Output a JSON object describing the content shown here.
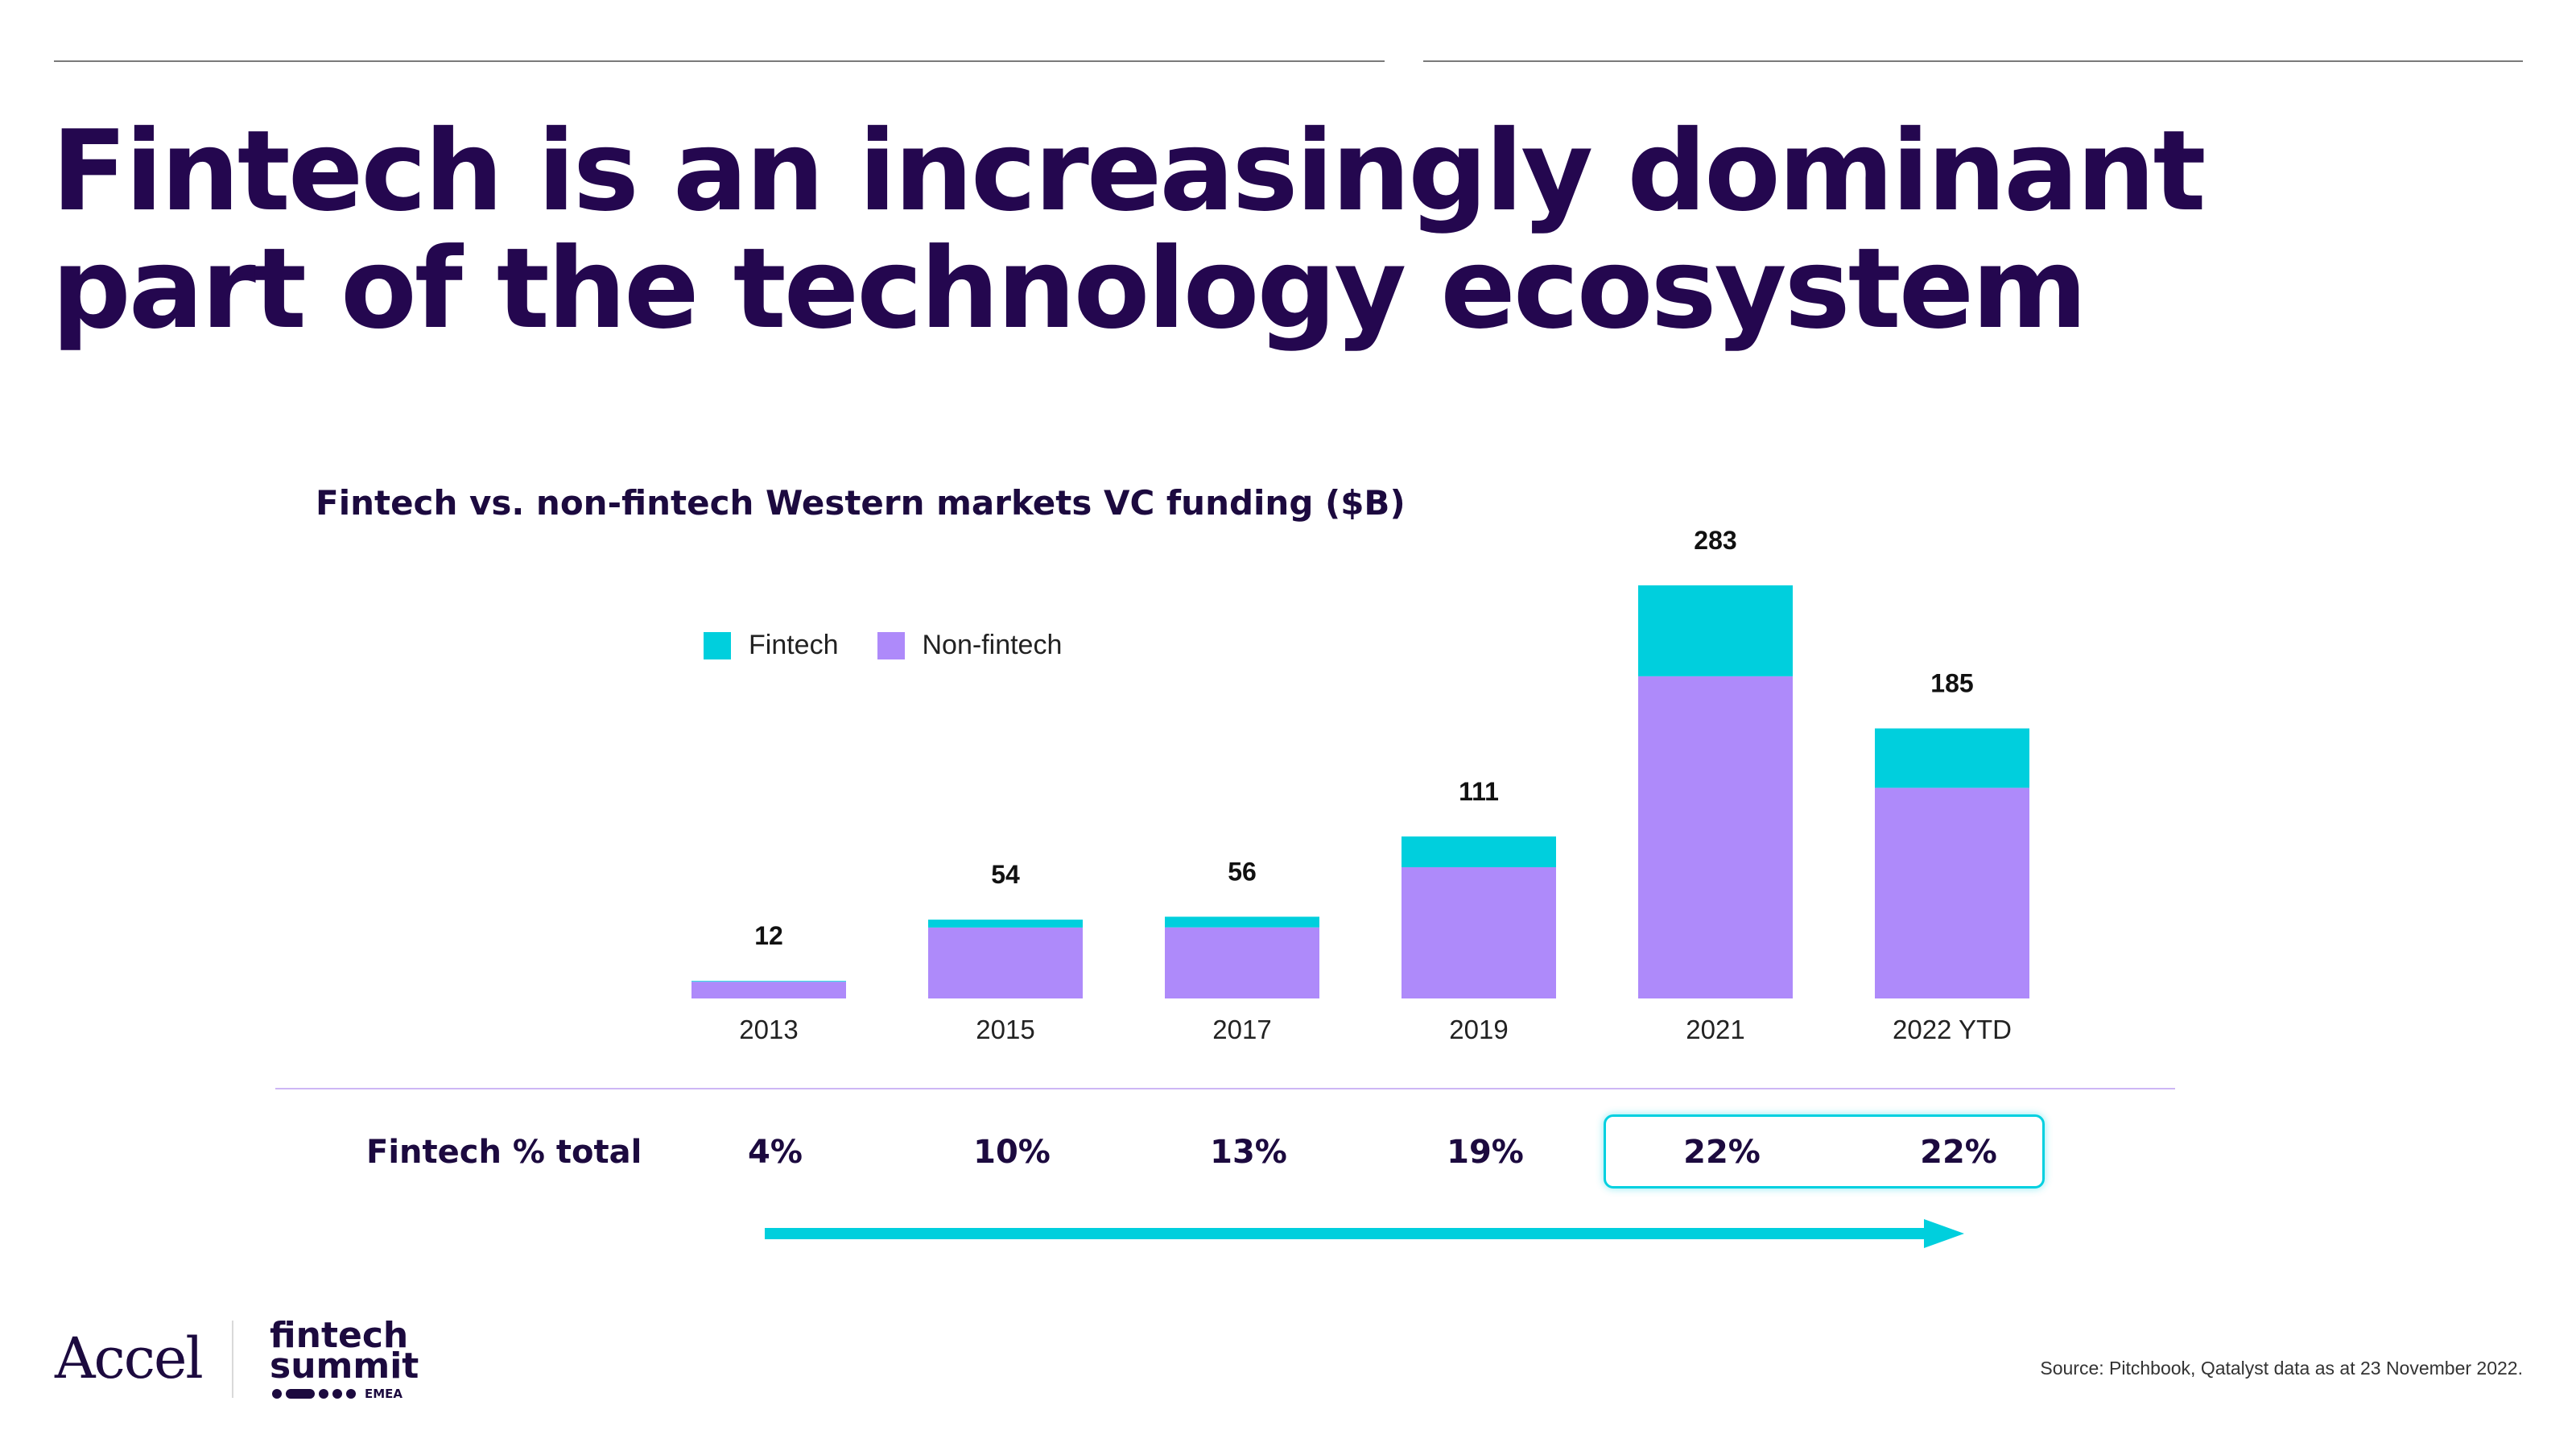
{
  "slide": {
    "headline_line1": "Fintech is an increasingly dominant",
    "headline_line2": "part of the technology ecosystem",
    "source": "Source: Pitchbook, Qatalyst data as at 23 November 2022."
  },
  "colors": {
    "fintech": "#00cfdd",
    "non_fintech": "#ae8afa",
    "headline": "#24074f",
    "highlight": "#00d0e0"
  },
  "chart_data": {
    "type": "bar",
    "stacked": true,
    "title": "Fintech vs. non-fintech Western markets VC funding ($B)",
    "categories": [
      "2013",
      "2015",
      "2017",
      "2019",
      "2021",
      "2022 YTD"
    ],
    "series": [
      {
        "name": "Non-fintech",
        "values": [
          11.5,
          48.6,
          48.7,
          89.9,
          220.7,
          144.3
        ]
      },
      {
        "name": "Fintech",
        "values": [
          0.5,
          5.4,
          7.3,
          21.1,
          62.3,
          40.7
        ]
      }
    ],
    "totals": [
      "12",
      "54",
      "56",
      "111",
      "283",
      "185"
    ],
    "legend": [
      "Fintech",
      "Non-fintech"
    ],
    "legend_position": "top-left",
    "ylim": [
      0,
      300
    ],
    "grid": false,
    "xlabel": "",
    "ylabel": ""
  },
  "fintech_share": {
    "label": "Fintech % total",
    "values": [
      "4%",
      "10%",
      "13%",
      "19%",
      "22%",
      "22%"
    ],
    "highlighted": [
      "2021",
      "2022 YTD"
    ]
  },
  "logos": {
    "accel": "Accel",
    "summit_line1": "fintech",
    "summit_line2": "summit",
    "summit_region": "EMEA"
  }
}
